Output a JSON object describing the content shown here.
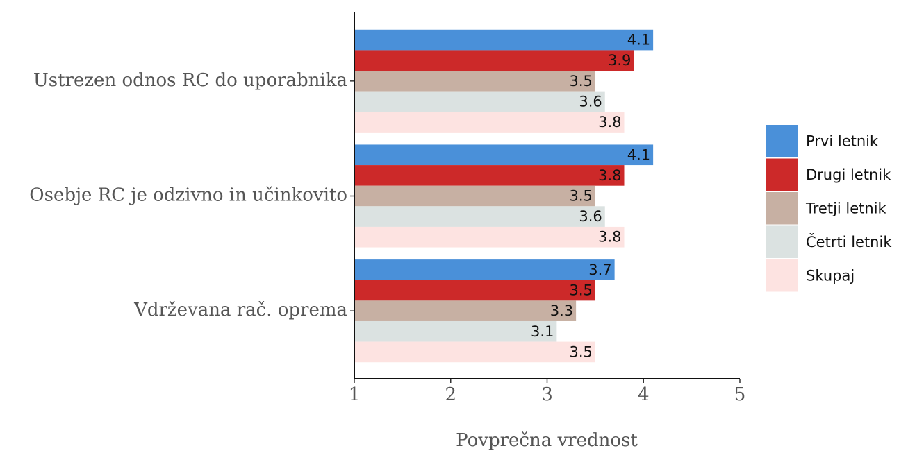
{
  "chart_data": {
    "type": "bar",
    "orientation": "horizontal",
    "x_label": "Povprečna vrednost",
    "categories": [
      "Ustrezen odnos RC do uporabnika",
      "Osebje RC je odzivno in učinkovito",
      "Vdrževana rač. oprema"
    ],
    "series": [
      {
        "name": "Prvi letnik",
        "color": "#4a90d9",
        "values": [
          4.1,
          4.1,
          3.7
        ]
      },
      {
        "name": "Drugi letnik",
        "color": "#cc2929",
        "values": [
          3.9,
          3.8,
          3.5
        ]
      },
      {
        "name": "Tretji letnik",
        "color": "#c7b0a3",
        "values": [
          3.5,
          3.5,
          3.3
        ]
      },
      {
        "name": "Četrti letnik",
        "color": "#dbe2e1",
        "values": [
          3.6,
          3.6,
          3.1
        ]
      },
      {
        "name": "Skupaj",
        "color": "#fde3e1",
        "values": [
          3.8,
          3.8,
          3.5
        ]
      }
    ],
    "xlim": [
      1,
      5
    ],
    "xticks": [
      1,
      2,
      3,
      4,
      5
    ],
    "grid": false,
    "legend": "right"
  }
}
